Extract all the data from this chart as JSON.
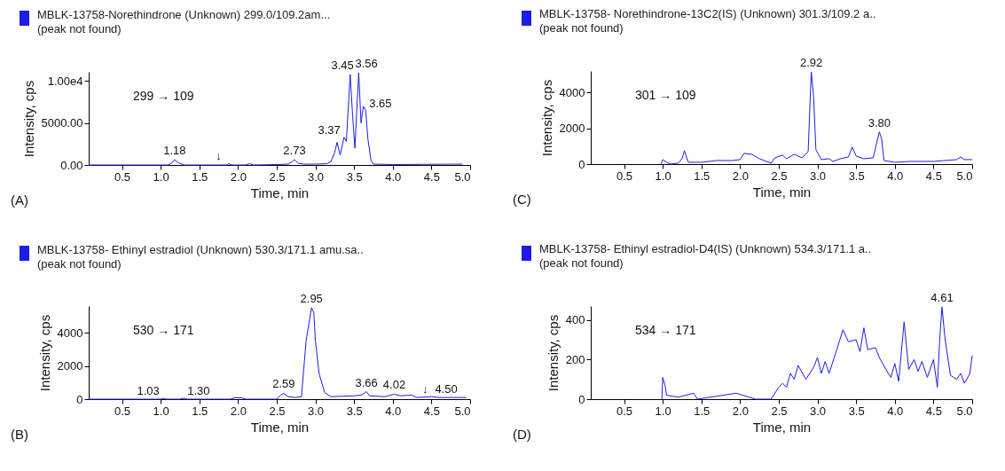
{
  "chart_data": [
    {
      "type": "line",
      "title": "MBLK-13758-Norethindrone (Unknown) 299.0/109.2am...",
      "subtitle": "(peak not found)",
      "xlabel": "Time, min",
      "ylabel": "Intensity, cps",
      "xlim": [
        0.07,
        5.0
      ],
      "ylim": [
        0,
        11100
      ],
      "xticks": [
        0.5,
        {
          "value": 1,
          "label": "1.0"
        },
        1.5,
        {
          "value": 2,
          "label": "2.0"
        },
        2.5,
        {
          "value": 3,
          "label": "3.0"
        },
        3.5,
        {
          "value": 4,
          "label": "4.0"
        },
        4.5,
        {
          "value": 5,
          "label": "5.0"
        }
      ],
      "yticks": [
        {
          "value": 0,
          "label": "0.00"
        },
        {
          "value": 5000,
          "label": "5000.00"
        },
        {
          "value": 10000,
          "label": "1.00e4"
        }
      ],
      "series": [
        {
          "color": "#1c1ce8",
          "x": [
            0.07,
            1.1,
            1.15,
            1.18,
            1.22,
            1.3,
            1.75,
            1.85,
            1.88,
            1.92,
            2.1,
            2.15,
            2.2,
            2.5,
            2.65,
            2.7,
            2.73,
            2.78,
            2.85,
            3.0,
            3.15,
            3.2,
            3.25,
            3.28,
            3.32,
            3.37,
            3.4,
            3.45,
            3.48,
            3.51,
            3.56,
            3.59,
            3.62,
            3.65,
            3.68,
            3.72,
            3.75,
            4.0,
            4.4,
            4.9
          ],
          "values": [
            0,
            0,
            300,
            640,
            300,
            0,
            0,
            0,
            150,
            0,
            0,
            150,
            0,
            50,
            100,
            400,
            640,
            200,
            100,
            100,
            150,
            400,
            1500,
            2700,
            1200,
            3300,
            2800,
            10800,
            6000,
            2000,
            11000,
            5000,
            7000,
            6500,
            3000,
            500,
            100,
            50,
            80,
            100
          ]
        }
      ],
      "annotations": [
        "299 → 109",
        "(A)",
        {
          "text": "1.18",
          "x": 1.18,
          "y": 640
        },
        {
          "text": "↓",
          "x": 1.75,
          "y": 0
        },
        {
          "text": "2.73",
          "x": 2.73,
          "y": 640
        },
        {
          "text": "3.37",
          "x": 3.37,
          "y": 3300
        },
        {
          "text": "3.45",
          "x": 3.45,
          "y": 10800
        },
        {
          "text": "3.56",
          "x": 3.56,
          "y": 11000
        },
        {
          "text": "3.65",
          "x": 3.65,
          "y": 6500
        }
      ]
    },
    {
      "type": "line",
      "title": "MBLK-13758- Norethindrone-13C2(IS) (Unknown) 301.3/109.2 a..",
      "subtitle": "(peak not found)",
      "xlabel": "Time, min",
      "ylabel": "Intensity, cps",
      "xlim": [
        0.07,
        5.0
      ],
      "ylim": [
        0,
        5200
      ],
      "xticks": [
        0.5,
        {
          "value": 1,
          "label": "1.0"
        },
        1.5,
        {
          "value": 2,
          "label": "2.0"
        },
        2.5,
        {
          "value": 3,
          "label": "3.0"
        },
        3.5,
        {
          "value": 4,
          "label": "4.0"
        },
        4.5,
        {
          "value": 5,
          "label": "5.0"
        }
      ],
      "yticks": [
        0,
        2000,
        4000
      ],
      "series": [
        {
          "color": "#1c1ce8",
          "x": [
            0.98,
            1.0,
            1.05,
            1.1,
            1.2,
            1.25,
            1.28,
            1.33,
            1.4,
            1.5,
            1.7,
            1.9,
            2.0,
            2.05,
            2.15,
            2.25,
            2.4,
            2.45,
            2.55,
            2.6,
            2.7,
            2.8,
            2.88,
            2.92,
            2.95,
            2.98,
            3.05,
            3.15,
            3.2,
            3.3,
            3.4,
            3.45,
            3.5,
            3.6,
            3.72,
            3.8,
            3.83,
            3.86,
            4.0,
            4.2,
            4.5,
            4.8,
            4.85,
            4.9,
            5.0
          ],
          "values": [
            0,
            250,
            100,
            0,
            50,
            300,
            750,
            100,
            100,
            100,
            200,
            200,
            250,
            600,
            550,
            300,
            50,
            350,
            500,
            300,
            550,
            350,
            700,
            5150,
            3800,
            800,
            250,
            300,
            150,
            300,
            400,
            950,
            450,
            300,
            350,
            1800,
            1400,
            200,
            100,
            150,
            150,
            250,
            400,
            250,
            250
          ]
        }
      ],
      "annotations": [
        "301 → 109",
        "(C)",
        {
          "text": "2.92",
          "x": 2.92,
          "y": 5150
        },
        {
          "text": "3.80",
          "x": 3.8,
          "y": 1800
        }
      ]
    },
    {
      "type": "line",
      "title": "MBLK-13758- Ethinyl estradiol (Unknown) 530.3/171.1 amu.sa..",
      "subtitle": "(peak not found)",
      "xlabel": "Time, min",
      "ylabel": "Intensity, cps",
      "xlim": [
        0.07,
        5.0
      ],
      "ylim": [
        0,
        5600
      ],
      "xticks": [
        0.5,
        {
          "value": 1,
          "label": "1.0"
        },
        1.5,
        {
          "value": 2,
          "label": "2.0"
        },
        2.5,
        {
          "value": 3,
          "label": "3.0"
        },
        3.5,
        {
          "value": 4,
          "label": "4.0"
        },
        4.5,
        {
          "value": 5,
          "label": "5.0"
        }
      ],
      "yticks": [
        0,
        2000,
        4000
      ],
      "series": [
        {
          "color": "#1c1ce8",
          "x": [
            0.07,
            1.0,
            1.03,
            1.08,
            1.25,
            1.3,
            1.35,
            1.9,
            1.95,
            2.05,
            2.1,
            2.5,
            2.55,
            2.59,
            2.65,
            2.75,
            2.82,
            2.88,
            2.95,
            2.98,
            3.0,
            3.05,
            3.12,
            3.2,
            3.5,
            3.6,
            3.66,
            3.7,
            3.9,
            4.02,
            4.1,
            4.25,
            4.3,
            4.5,
            4.6,
            4.95
          ],
          "values": [
            0,
            0,
            30,
            0,
            0,
            60,
            0,
            0,
            80,
            80,
            0,
            0,
            250,
            350,
            150,
            100,
            150,
            3500,
            5500,
            5200,
            3500,
            1500,
            400,
            150,
            200,
            250,
            450,
            200,
            150,
            300,
            200,
            250,
            100,
            150,
            100,
            100
          ]
        }
      ],
      "annotations": [
        "530 → 171",
        "(B)",
        {
          "text": "1.03",
          "x": 1.03,
          "y": 30
        },
        {
          "text": "1.30",
          "x": 1.3,
          "y": 60
        },
        {
          "text": "2.59",
          "x": 2.59,
          "y": 350
        },
        {
          "text": "2.95",
          "x": 2.95,
          "y": 5500
        },
        {
          "text": "3.66",
          "x": 3.66,
          "y": 450
        },
        {
          "text": "4.02",
          "x": 4.02,
          "y": 300
        },
        {
          "text": "↓",
          "x": 4.5,
          "y": 150
        },
        {
          "text": "4.50",
          "x": 4.5,
          "y": 150
        }
      ]
    },
    {
      "type": "line",
      "title": "MBLK-13758- Ethinyl estradiol-D4(IS) (Unknown) 534.3/171.1 a..",
      "subtitle": "(peak not found)",
      "xlabel": "Time, min",
      "ylabel": "Intensity, cps",
      "xlim": [
        0.07,
        5.0
      ],
      "ylim": [
        0,
        470
      ],
      "xticks": [
        0.5,
        {
          "value": 1,
          "label": "1.0"
        },
        1.5,
        {
          "value": 2,
          "label": "2.0"
        },
        2.5,
        {
          "value": 3,
          "label": "3.0"
        },
        3.5,
        {
          "value": 4,
          "label": "4.0"
        },
        4.5,
        {
          "value": 5,
          "label": "5.0"
        }
      ],
      "yticks": [
        0,
        200,
        400
      ],
      "series": [
        {
          "color": "#1c1ce8",
          "x": [
            0.99,
            1.0,
            1.03,
            1.05,
            1.2,
            1.4,
            1.45,
            1.7,
            1.95,
            2.2,
            2.4,
            2.5,
            2.55,
            2.6,
            2.65,
            2.7,
            2.75,
            2.85,
            2.95,
            3.0,
            3.05,
            3.1,
            3.15,
            3.25,
            3.33,
            3.4,
            3.5,
            3.55,
            3.6,
            3.65,
            3.75,
            3.8,
            3.9,
            3.95,
            4.0,
            4.05,
            4.12,
            4.18,
            4.25,
            4.3,
            4.35,
            4.42,
            4.5,
            4.55,
            4.58,
            4.61,
            4.65,
            4.72,
            4.8,
            4.85,
            4.9,
            4.97,
            5.0
          ],
          "values": [
            0,
            110,
            70,
            20,
            10,
            30,
            0,
            15,
            30,
            0,
            0,
            60,
            80,
            60,
            130,
            100,
            170,
            100,
            160,
            210,
            130,
            190,
            130,
            250,
            350,
            290,
            300,
            240,
            360,
            250,
            260,
            210,
            140,
            110,
            180,
            90,
            390,
            150,
            200,
            140,
            190,
            110,
            200,
            60,
            300,
            465,
            300,
            120,
            100,
            130,
            80,
            130,
            220
          ]
        }
      ],
      "annotations": [
        "534 → 171",
        "(D)",
        {
          "text": "4.61",
          "x": 4.61,
          "y": 465
        }
      ]
    }
  ]
}
